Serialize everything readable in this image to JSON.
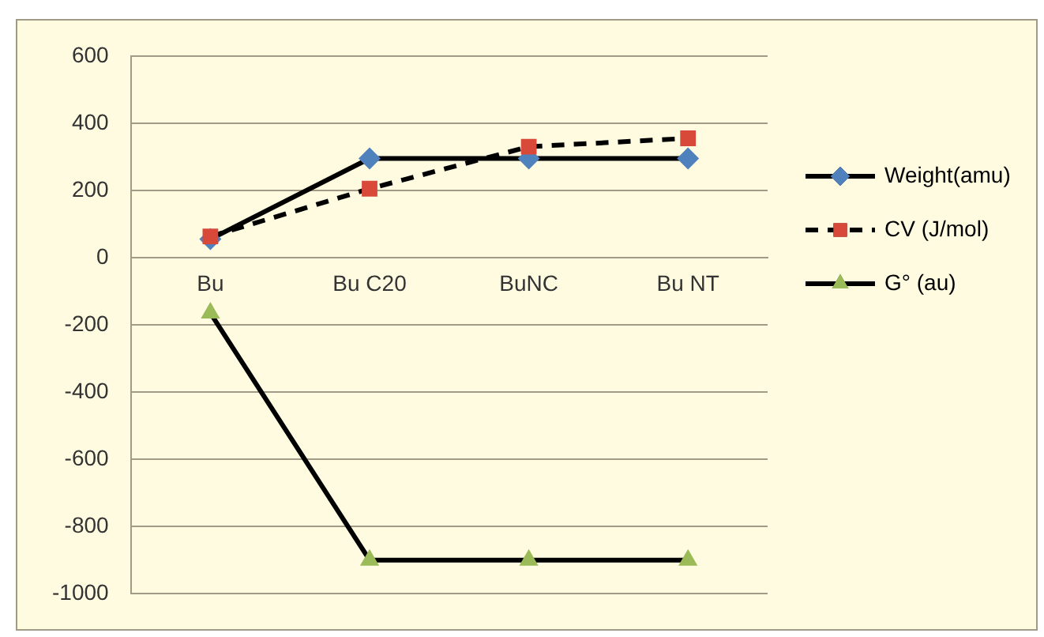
{
  "chart_data": {
    "type": "line",
    "categories": [
      "Bu",
      "Bu C20",
      "BuNC",
      "Bu NT"
    ],
    "series": [
      {
        "name": "Weight(amu)",
        "color": "#4f81bd",
        "marker": "diamond",
        "line_style": "solid",
        "values": [
          55,
          295,
          295,
          295
        ]
      },
      {
        "name": "CV (J/mol)",
        "color": "#d9493a",
        "marker": "square",
        "line_style": "dashed",
        "values": [
          63,
          205,
          330,
          355
        ]
      },
      {
        "name": "G° (au)",
        "color": "#9bbb59",
        "marker": "triangle",
        "line_style": "solid",
        "values": [
          -165,
          -900,
          -900,
          -900
        ]
      }
    ],
    "ylim": [
      -1000,
      600
    ],
    "yticks": [
      -1000,
      -800,
      -600,
      -400,
      -200,
      0,
      200,
      400,
      600
    ],
    "grid": "y",
    "legend": "right"
  }
}
